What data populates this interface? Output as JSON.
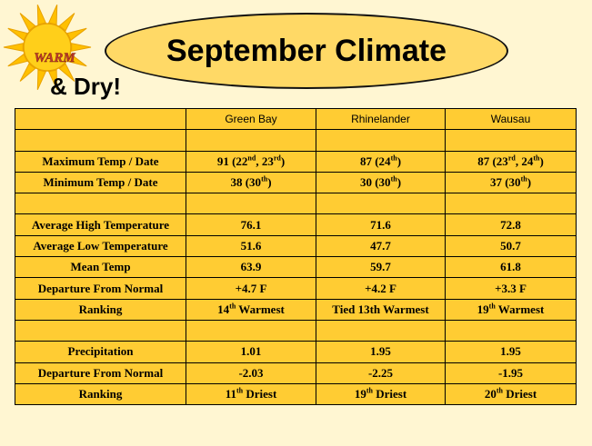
{
  "title": "September Climate",
  "badge": {
    "text": "WARM",
    "color": "#c0392b"
  },
  "subtitle": "& Dry!",
  "colors": {
    "table_fill": "#ffcc33",
    "oval_fill": "#ffd966",
    "background": "#fff6d2",
    "sun": "#ffc000"
  },
  "table": {
    "columns": [
      "",
      "Green Bay",
      "Rhinelander",
      "Wausau"
    ],
    "rows": [
      {
        "label": "",
        "cells": [
          [],
          [],
          []
        ]
      },
      {
        "label": "Maximum Temp / Date",
        "cells": [
          [
            [
              "91  (22",
              ""
            ],
            [
              "nd",
              "sup"
            ],
            [
              ", 23",
              ""
            ],
            [
              "rd",
              "sup"
            ],
            [
              ")",
              ""
            ]
          ],
          [
            [
              "87 (24",
              ""
            ],
            [
              "th",
              "sup"
            ],
            [
              ")",
              ""
            ]
          ],
          [
            [
              "87 (23",
              ""
            ],
            [
              "rd",
              "sup"
            ],
            [
              ", 24",
              ""
            ],
            [
              "th",
              "sup"
            ],
            [
              ")",
              ""
            ]
          ]
        ]
      },
      {
        "label": "Minimum Temp / Date",
        "cells": [
          [
            [
              "38 (30",
              ""
            ],
            [
              "th",
              "sup"
            ],
            [
              ")",
              ""
            ]
          ],
          [
            [
              "30 (30",
              ""
            ],
            [
              "th",
              "sup"
            ],
            [
              ")",
              ""
            ]
          ],
          [
            [
              "37 (30",
              ""
            ],
            [
              "th",
              "sup"
            ],
            [
              ")",
              ""
            ]
          ]
        ]
      },
      {
        "label": "",
        "cells": [
          [],
          [],
          []
        ]
      },
      {
        "label": "Average High Temperature",
        "cells": [
          [
            [
              "76.1",
              ""
            ]
          ],
          [
            [
              "71.6",
              ""
            ]
          ],
          [
            [
              "72.8",
              ""
            ]
          ]
        ]
      },
      {
        "label": "Average Low Temperature",
        "cells": [
          [
            [
              "51.6",
              ""
            ]
          ],
          [
            [
              "47.7",
              ""
            ]
          ],
          [
            [
              "50.7",
              ""
            ]
          ]
        ]
      },
      {
        "label": "Mean Temp",
        "cells": [
          [
            [
              "63.9",
              ""
            ]
          ],
          [
            [
              "59.7",
              ""
            ]
          ],
          [
            [
              "61.8",
              ""
            ]
          ]
        ]
      },
      {
        "label": "Departure From Normal",
        "cells": [
          [
            [
              "+4.7 F",
              ""
            ]
          ],
          [
            [
              "+4.2 F",
              ""
            ]
          ],
          [
            [
              "+3.3 F",
              ""
            ]
          ]
        ]
      },
      {
        "label": "Ranking",
        "cells": [
          [
            [
              "14",
              ""
            ],
            [
              "th",
              "sup"
            ],
            [
              " Warmest",
              ""
            ]
          ],
          [
            [
              "Tied 13th Warmest",
              ""
            ]
          ],
          [
            [
              "19",
              ""
            ],
            [
              "th",
              "sup"
            ],
            [
              " Warmest",
              ""
            ]
          ]
        ]
      },
      {
        "label": "",
        "cells": [
          [],
          [],
          []
        ]
      },
      {
        "label": "Precipitation",
        "cells": [
          [
            [
              "1.01",
              ""
            ]
          ],
          [
            [
              "1.95",
              ""
            ]
          ],
          [
            [
              "1.95",
              ""
            ]
          ]
        ]
      },
      {
        "label": "Departure From Normal",
        "cells": [
          [
            [
              "-2.03",
              ""
            ]
          ],
          [
            [
              "-2.25",
              ""
            ]
          ],
          [
            [
              "-1.95",
              ""
            ]
          ]
        ]
      },
      {
        "label": "Ranking",
        "cells": [
          [
            [
              "11",
              ""
            ],
            [
              "th",
              "sup"
            ],
            [
              " Driest",
              ""
            ]
          ],
          [
            [
              "19",
              ""
            ],
            [
              "th",
              "sup"
            ],
            [
              " Driest",
              ""
            ]
          ],
          [
            [
              "20",
              ""
            ],
            [
              "th",
              "sup"
            ],
            [
              " Driest",
              ""
            ]
          ]
        ]
      }
    ]
  }
}
